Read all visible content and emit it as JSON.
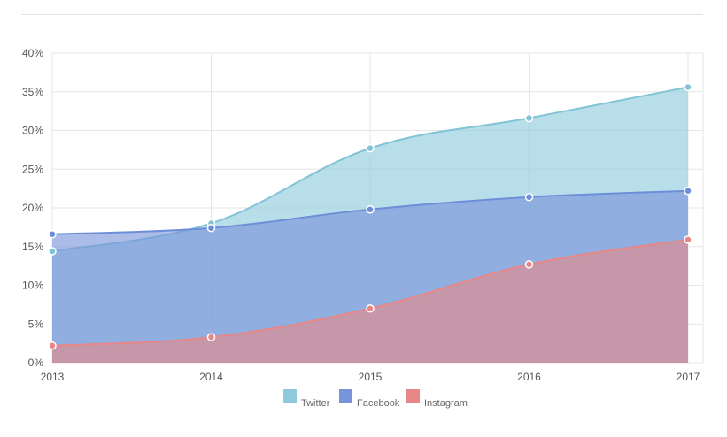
{
  "chart_data": {
    "type": "area",
    "x": [
      "2013",
      "2014",
      "2015",
      "2016",
      "2017"
    ],
    "series": [
      {
        "name": "Twitter",
        "color": "#8ccadc",
        "line": "#82c4d6",
        "values": [
          14.4,
          18.0,
          27.7,
          31.6,
          35.6
        ]
      },
      {
        "name": "Facebook",
        "color": "#7793da",
        "line": "#6d8ed9",
        "values": [
          16.6,
          17.4,
          19.8,
          21.4,
          22.2
        ]
      },
      {
        "name": "Instagram",
        "color": "#e68888",
        "line": "#e78787",
        "values": [
          2.2,
          3.3,
          7.0,
          12.7,
          15.9
        ]
      }
    ],
    "ylim": [
      0,
      40
    ],
    "y_ticks": [
      "0%",
      "5%",
      "10%",
      "15%",
      "20%",
      "25%",
      "30%",
      "35%",
      "40%"
    ],
    "y_tick_values": [
      0,
      5,
      10,
      15,
      20,
      25,
      30,
      35,
      40
    ],
    "grid": true,
    "legend_position": "bottom",
    "title": "",
    "xlabel": "",
    "ylabel": ""
  }
}
